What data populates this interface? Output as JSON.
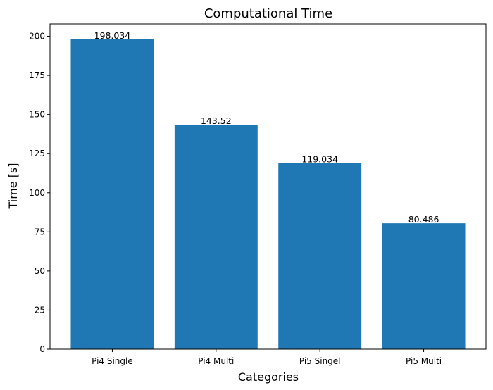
{
  "chart_data": {
    "type": "bar",
    "title": "Computational Time",
    "xlabel": "Categories",
    "ylabel": "Time [s]",
    "categories": [
      "Pi4 Single",
      "Pi4 Multi",
      "Pi5 Singel",
      "Pi5 Multi"
    ],
    "values": [
      198.034,
      143.52,
      119.034,
      80.486
    ],
    "value_labels": [
      "198.034",
      "143.52",
      "119.034",
      "80.486"
    ],
    "ylim": [
      0,
      207.9
    ],
    "yticks": [
      0,
      25,
      50,
      75,
      100,
      125,
      150,
      175,
      200
    ],
    "bar_color": "#1f77b4",
    "grid": false,
    "legend": "none"
  }
}
